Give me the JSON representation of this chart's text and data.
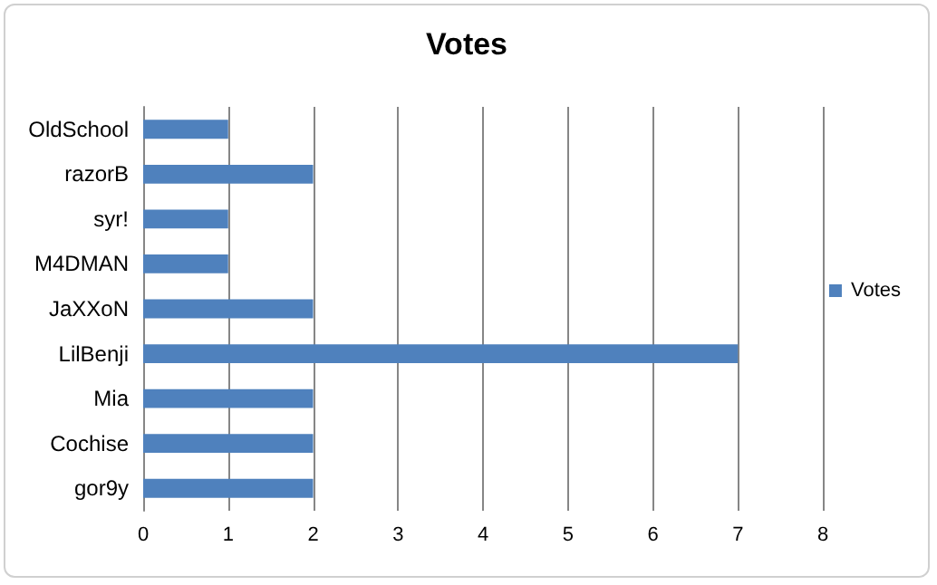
{
  "chart_data": {
    "type": "bar",
    "title": "Votes",
    "orientation": "horizontal",
    "categories": [
      "OldSchool",
      "razorB",
      "syr!",
      "M4DMAN",
      "JaXXoN",
      "LilBenji",
      "Mia",
      "Cochise",
      "gor9y"
    ],
    "series": [
      {
        "name": "Votes",
        "color": "#4f81bd",
        "values": [
          1,
          2,
          1,
          1,
          2,
          7,
          2,
          2,
          2
        ]
      }
    ],
    "xlim": [
      0,
      8
    ],
    "xticks": [
      0,
      1,
      2,
      3,
      4,
      5,
      6,
      7,
      8
    ],
    "grid": "x",
    "legend": "right"
  }
}
